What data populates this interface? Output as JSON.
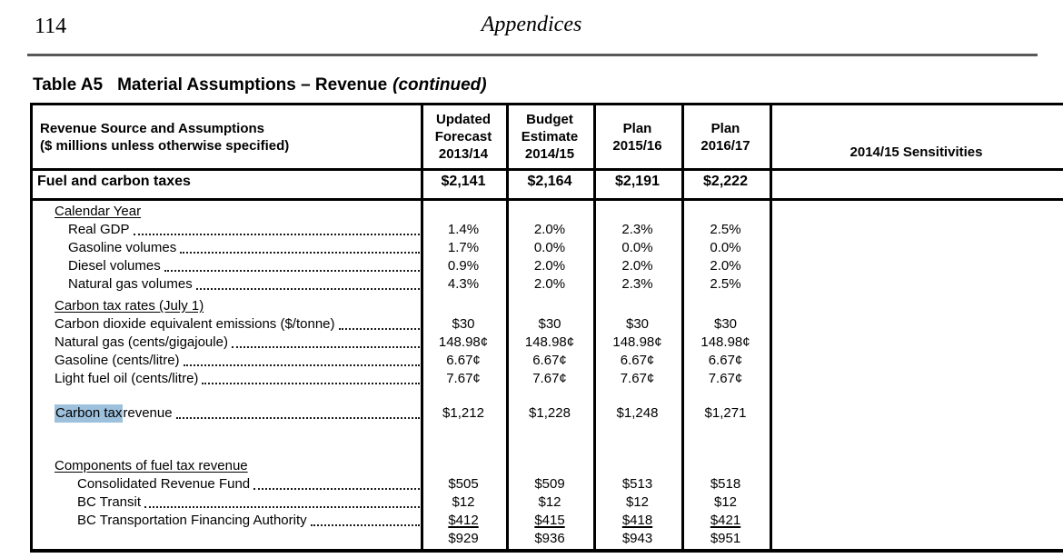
{
  "page": {
    "number": "114",
    "running_header": "Appendices"
  },
  "title": {
    "prefix": "Table A5",
    "main": "Material Assumptions – Revenue",
    "continued": "(continued)"
  },
  "colors": {
    "highlight": "#9dc1dd",
    "rule": "#58585a"
  },
  "table": {
    "col_headers": [
      {
        "lines": [
          "Revenue Source and Assumptions",
          "($ millions unless otherwise specified)"
        ]
      },
      {
        "lines": [
          "Updated",
          "Forecast",
          "2013/14"
        ]
      },
      {
        "lines": [
          "Budget",
          "Estimate",
          "2014/15"
        ]
      },
      {
        "lines": [
          "Plan",
          "2015/16"
        ]
      },
      {
        "lines": [
          "Plan",
          "2016/17"
        ]
      },
      {
        "lines": [
          "2014/15 Sensitivities"
        ]
      }
    ],
    "fuel_row": {
      "label": "Fuel and carbon taxes",
      "values": [
        "$2,141",
        "$2,164",
        "$2,191",
        "$2,222"
      ],
      "sensitivity": ""
    },
    "rows": [
      {
        "type": "section",
        "indent": 1,
        "label": "Calendar Year"
      },
      {
        "type": "item",
        "indent": 2,
        "label": "Real GDP",
        "values": [
          "1.4%",
          "2.0%",
          "2.3%",
          "2.5%"
        ]
      },
      {
        "type": "item",
        "indent": 2,
        "label": "Gasoline volumes",
        "values": [
          "1.7%",
          "0.0%",
          "0.0%",
          "0.0%"
        ]
      },
      {
        "type": "item",
        "indent": 2,
        "label": "Diesel volumes",
        "values": [
          "0.9%",
          "2.0%",
          "2.0%",
          "2.0%"
        ]
      },
      {
        "type": "item",
        "indent": 2,
        "label": "Natural gas volumes",
        "values": [
          "4.3%",
          "2.0%",
          "2.3%",
          "2.5%"
        ]
      },
      {
        "type": "spacer",
        "h": 4
      },
      {
        "type": "section",
        "indent": 1,
        "label": "Carbon tax rates (July 1)"
      },
      {
        "type": "item",
        "indent": 1,
        "label": "Carbon dioxide equivalent emissions ($/tonne)",
        "values": [
          "$30",
          "$30",
          "$30",
          "$30"
        ]
      },
      {
        "type": "item",
        "indent": 1,
        "label": "Natural gas (cents/gigajoule)",
        "values": [
          "148.98¢",
          "148.98¢",
          "148.98¢",
          "148.98¢"
        ]
      },
      {
        "type": "item",
        "indent": 1,
        "label": "Gasoline (cents/litre)",
        "values": [
          "6.67¢",
          "6.67¢",
          "6.67¢",
          "6.67¢"
        ]
      },
      {
        "type": "item",
        "indent": 1,
        "label": "Light fuel oil (cents/litre)",
        "values": [
          "7.67¢",
          "7.67¢",
          "7.67¢",
          "7.67¢"
        ]
      },
      {
        "type": "spacer",
        "h": 18
      },
      {
        "type": "item",
        "indent": 1,
        "label_hl": "Carbon tax",
        "label": " revenue",
        "values": [
          "$1,212",
          "$1,228",
          "$1,248",
          "$1,271"
        ]
      },
      {
        "type": "spacer",
        "h": 38
      },
      {
        "type": "section",
        "indent": 1,
        "label": "Components of fuel tax revenue"
      },
      {
        "type": "item",
        "indent": 3,
        "label": "Consolidated Revenue Fund",
        "values": [
          "$505",
          "$509",
          "$513",
          "$518"
        ]
      },
      {
        "type": "item",
        "indent": 3,
        "label": "BC Transit",
        "values": [
          "$12",
          "$12",
          "$12",
          "$12"
        ]
      },
      {
        "type": "item",
        "indent": 3,
        "label": "BC Transportation Financing Authority",
        "values": [
          "$412",
          "$415",
          "$418",
          "$421"
        ],
        "underline_values": true
      },
      {
        "type": "item",
        "indent": 0,
        "label": "",
        "no_leader": true,
        "values": [
          "$929",
          "$936",
          "$943",
          "$951"
        ]
      }
    ]
  }
}
